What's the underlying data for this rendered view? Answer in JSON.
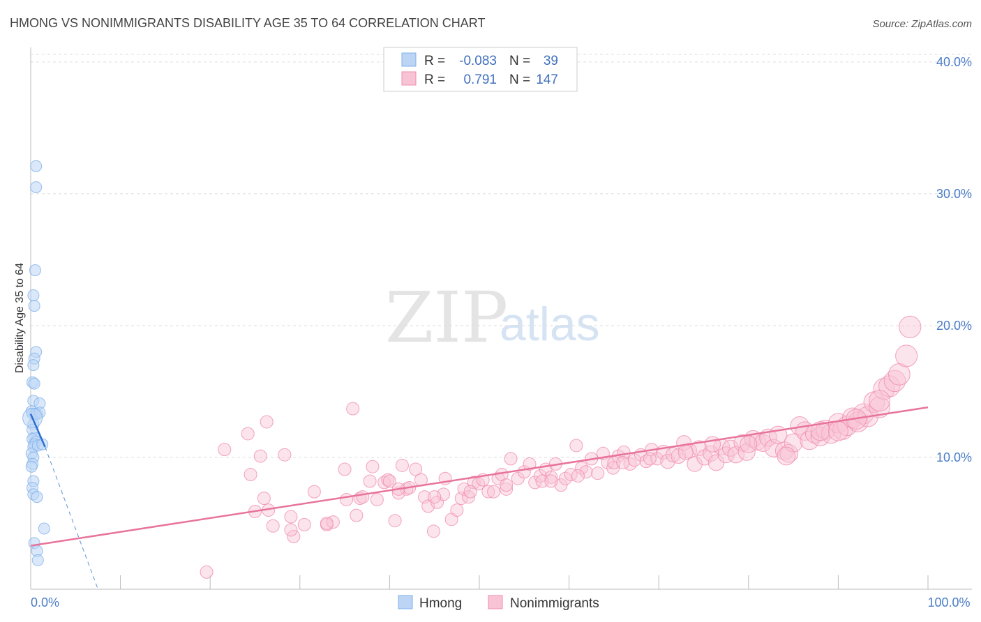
{
  "chart_data": {
    "type": "scatter",
    "title": "HMONG VS NONIMMIGRANTS DISABILITY AGE 35 TO 64 CORRELATION CHART",
    "source": "Source: ZipAtlas.com",
    "xlabel": "",
    "ylabel": "Disability Age 35 to 64",
    "xlim": [
      0,
      100
    ],
    "ylim": [
      0,
      41
    ],
    "x_tick_labels": [
      {
        "value": 0,
        "label": "0.0%"
      },
      {
        "value": 100,
        "label": "100.0%"
      }
    ],
    "y_tick_labels": [
      {
        "value": 10,
        "label": "10.0%"
      },
      {
        "value": 20,
        "label": "20.0%"
      },
      {
        "value": 30,
        "label": "30.0%"
      },
      {
        "value": 40,
        "label": "40.0%"
      }
    ],
    "watermark": {
      "zip": "ZIP",
      "atlas": "atlas"
    },
    "legend_box": {
      "r_label": "R =",
      "n_label": "N =",
      "rows": [
        {
          "r": "-0.083",
          "n": "39"
        },
        {
          "r": "0.791",
          "n": "147"
        }
      ]
    },
    "series": [
      {
        "name": "Hmong",
        "color": "#7eb0ea",
        "fill": "#bcd5f5",
        "trend": {
          "x0": 0,
          "y0": 13.3,
          "x1": 1.6,
          "y1": 10.8
        },
        "trend_extension": {
          "x0": 1.6,
          "y0": 10.8,
          "x1": 7.5,
          "y1": 0
        },
        "points": [
          [
            0.6,
            32.1
          ],
          [
            0.6,
            30.5
          ],
          [
            0.5,
            24.2
          ],
          [
            0.3,
            22.3
          ],
          [
            0.4,
            21.5
          ],
          [
            0.6,
            18.0
          ],
          [
            0.4,
            17.5
          ],
          [
            0.3,
            17.0
          ],
          [
            0.2,
            15.7
          ],
          [
            0.4,
            15.6
          ],
          [
            0.3,
            14.3
          ],
          [
            1.0,
            14.1
          ],
          [
            0.1,
            13.5
          ],
          [
            0.2,
            13.3
          ],
          [
            0.5,
            13.3
          ],
          [
            0.7,
            13.3
          ],
          [
            1.0,
            13.4
          ],
          [
            0.3,
            12.5
          ],
          [
            0.2,
            12.1
          ],
          [
            0.4,
            11.5
          ],
          [
            0.2,
            11.4
          ],
          [
            0.6,
            11.2
          ],
          [
            0.4,
            11.0
          ],
          [
            0.3,
            10.8
          ],
          [
            0.1,
            10.3
          ],
          [
            0.8,
            10.9
          ],
          [
            1.3,
            11.0
          ],
          [
            0.3,
            10.0
          ],
          [
            0.2,
            9.5
          ],
          [
            0.1,
            9.3
          ],
          [
            0.3,
            8.2
          ],
          [
            0.2,
            7.7
          ],
          [
            0.3,
            7.2
          ],
          [
            0.7,
            7.0
          ],
          [
            1.5,
            4.6
          ],
          [
            0.4,
            3.5
          ],
          [
            0.7,
            2.9
          ],
          [
            0.8,
            2.2
          ],
          [
            0.2,
            13.0
          ]
        ]
      },
      {
        "name": "Nonimmigrants",
        "color": "#f08cac",
        "fill": "#f8c3d5",
        "trend": {
          "x0": 0,
          "y0": 3.3,
          "x1": 100,
          "y1": 13.8
        },
        "points": [
          [
            19.6,
            1.3
          ],
          [
            21.6,
            10.6
          ],
          [
            24.2,
            11.8
          ],
          [
            24.5,
            8.7
          ],
          [
            25.0,
            5.9
          ],
          [
            25.6,
            10.1
          ],
          [
            26.0,
            6.9
          ],
          [
            26.3,
            12.7
          ],
          [
            27.0,
            4.8
          ],
          [
            28.3,
            10.2
          ],
          [
            29.0,
            5.5
          ],
          [
            29.3,
            4.0
          ],
          [
            30.5,
            4.9
          ],
          [
            31.6,
            7.4
          ],
          [
            33.0,
            4.9
          ],
          [
            33.7,
            5.1
          ],
          [
            35.0,
            9.1
          ],
          [
            35.2,
            6.8
          ],
          [
            35.9,
            13.7
          ],
          [
            36.3,
            5.6
          ],
          [
            36.7,
            6.9
          ],
          [
            37.8,
            8.2
          ],
          [
            38.1,
            9.3
          ],
          [
            38.6,
            6.8
          ],
          [
            39.4,
            8.1
          ],
          [
            39.8,
            8.3
          ],
          [
            40.0,
            8.2
          ],
          [
            40.6,
            5.2
          ],
          [
            41.0,
            7.3
          ],
          [
            41.4,
            9.4
          ],
          [
            41.9,
            7.6
          ],
          [
            42.2,
            7.7
          ],
          [
            42.9,
            9.1
          ],
          [
            43.5,
            8.3
          ],
          [
            43.9,
            7.0
          ],
          [
            44.3,
            6.3
          ],
          [
            44.9,
            4.4
          ],
          [
            45.3,
            6.6
          ],
          [
            46.0,
            7.2
          ],
          [
            46.2,
            8.4
          ],
          [
            46.9,
            5.3
          ],
          [
            47.5,
            6.0
          ],
          [
            48.0,
            6.9
          ],
          [
            48.3,
            7.6
          ],
          [
            48.8,
            7.0
          ],
          [
            49.4,
            8.1
          ],
          [
            49.9,
            8.0
          ],
          [
            50.4,
            8.3
          ],
          [
            51.0,
            7.4
          ],
          [
            51.6,
            7.4
          ],
          [
            52.1,
            8.4
          ],
          [
            52.5,
            8.7
          ],
          [
            53.0,
            7.6
          ],
          [
            53.5,
            9.9
          ],
          [
            54.3,
            8.4
          ],
          [
            55.0,
            8.9
          ],
          [
            55.6,
            9.5
          ],
          [
            56.2,
            8.1
          ],
          [
            56.8,
            8.6
          ],
          [
            57.4,
            9.1
          ],
          [
            58.0,
            8.5
          ],
          [
            58.5,
            9.5
          ],
          [
            59.1,
            7.9
          ],
          [
            59.6,
            8.4
          ],
          [
            60.2,
            8.7
          ],
          [
            60.8,
            10.9
          ],
          [
            61.4,
            9.2
          ],
          [
            61.9,
            8.9
          ],
          [
            62.5,
            9.9
          ],
          [
            63.2,
            8.8
          ],
          [
            63.8,
            10.3
          ],
          [
            64.3,
            9.6
          ],
          [
            64.9,
            9.2
          ],
          [
            65.5,
            10.1
          ],
          [
            66.1,
            10.4
          ],
          [
            66.8,
            9.5
          ],
          [
            67.3,
            9.8
          ],
          [
            68.0,
            10.2
          ],
          [
            68.6,
            9.7
          ],
          [
            69.2,
            10.6
          ],
          [
            69.8,
            9.9
          ],
          [
            70.5,
            10.4
          ],
          [
            71.0,
            9.7
          ],
          [
            71.6,
            10.2
          ],
          [
            72.2,
            10.1
          ],
          [
            72.8,
            11.1
          ],
          [
            73.4,
            10.5
          ],
          [
            74.0,
            9.5
          ],
          [
            74.5,
            10.7
          ],
          [
            75.1,
            10.0
          ],
          [
            75.8,
            10.3
          ],
          [
            76.4,
            9.6
          ],
          [
            77.0,
            10.8
          ],
          [
            77.5,
            10.2
          ],
          [
            78.0,
            10.7
          ],
          [
            78.6,
            10.2
          ],
          [
            79.3,
            11.1
          ],
          [
            79.8,
            10.4
          ],
          [
            80.5,
            11.4
          ],
          [
            81.0,
            11.2
          ],
          [
            81.6,
            11.1
          ],
          [
            82.2,
            11.5
          ],
          [
            82.8,
            10.7
          ],
          [
            83.3,
            11.7
          ],
          [
            84.0,
            10.5
          ],
          [
            84.5,
            10.3
          ],
          [
            85.0,
            11.1
          ],
          [
            85.7,
            12.4
          ],
          [
            86.3,
            12.0
          ],
          [
            86.8,
            11.3
          ],
          [
            87.4,
            11.8
          ],
          [
            88.0,
            11.6
          ],
          [
            88.6,
            12.1
          ],
          [
            89.2,
            11.8
          ],
          [
            90.0,
            12.6
          ],
          [
            90.5,
            12.1
          ],
          [
            91.0,
            12.4
          ],
          [
            91.6,
            13.0
          ],
          [
            92.2,
            12.7
          ],
          [
            92.8,
            13.3
          ],
          [
            93.3,
            13.1
          ],
          [
            94.0,
            14.2
          ],
          [
            94.6,
            13.8
          ],
          [
            95.1,
            15.2
          ],
          [
            95.7,
            15.4
          ],
          [
            96.3,
            15.8
          ],
          [
            96.8,
            16.3
          ],
          [
            97.6,
            17.7
          ],
          [
            98.0,
            19.9
          ],
          [
            84.2,
            10.1
          ],
          [
            73.0,
            10.4
          ],
          [
            69.0,
            9.9
          ],
          [
            65.0,
            9.6
          ],
          [
            61.0,
            8.6
          ],
          [
            57.0,
            8.2
          ],
          [
            53.0,
            7.9
          ],
          [
            49.0,
            7.4
          ],
          [
            45.0,
            7.0
          ],
          [
            41.0,
            7.6
          ],
          [
            37.0,
            7.0
          ],
          [
            33.0,
            5.0
          ],
          [
            29.0,
            4.5
          ],
          [
            26.5,
            6.0
          ],
          [
            76.0,
            11.0
          ],
          [
            80.0,
            11.0
          ],
          [
            88.0,
            12.0
          ],
          [
            92.0,
            12.9
          ],
          [
            90.0,
            12.0
          ],
          [
            94.6,
            14.3
          ],
          [
            66.0,
            9.6
          ],
          [
            58.0,
            8.2
          ]
        ]
      }
    ]
  }
}
